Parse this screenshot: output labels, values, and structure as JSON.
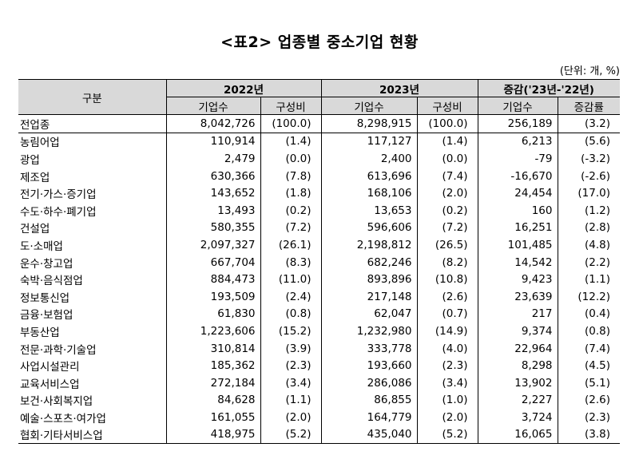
{
  "title": "<표2> 업종별 중소기업 현황",
  "unit": "(단위: 개, %)",
  "header": {
    "category": "구분",
    "groups": [
      "2022년",
      "2023년",
      "증감('23년-'22년)"
    ],
    "subs": [
      "기업수",
      "구성비",
      "기업수",
      "구성비",
      "기업수",
      "증감률"
    ]
  },
  "rows": [
    [
      "전업종",
      "8,042,726",
      "(100.0)",
      "8,298,915",
      "(100.0)",
      "256,189",
      "(3.2)"
    ],
    [
      "농림어업",
      "110,914",
      "(1.4)",
      "117,127",
      "(1.4)",
      "6,213",
      "(5.6)"
    ],
    [
      "광업",
      "2,479",
      "(0.0)",
      "2,400",
      "(0.0)",
      "-79",
      "(-3.2)"
    ],
    [
      "제조업",
      "630,366",
      "(7.8)",
      "613,696",
      "(7.4)",
      "-16,670",
      "(-2.6)"
    ],
    [
      "전기·가스·증기업",
      "143,652",
      "(1.8)",
      "168,106",
      "(2.0)",
      "24,454",
      "(17.0)"
    ],
    [
      "수도·하수·폐기업",
      "13,493",
      "(0.2)",
      "13,653",
      "(0.2)",
      "160",
      "(1.2)"
    ],
    [
      "건설업",
      "580,355",
      "(7.2)",
      "596,606",
      "(7.2)",
      "16,251",
      "(2.8)"
    ],
    [
      "도·소매업",
      "2,097,327",
      "(26.1)",
      "2,198,812",
      "(26.5)",
      "101,485",
      "(4.8)"
    ],
    [
      "운수·창고업",
      "667,704",
      "(8.3)",
      "682,246",
      "(8.2)",
      "14,542",
      "(2.2)"
    ],
    [
      "숙박·음식점업",
      "884,473",
      "(11.0)",
      "893,896",
      "(10.8)",
      "9,423",
      "(1.1)"
    ],
    [
      "정보통신업",
      "193,509",
      "(2.4)",
      "217,148",
      "(2.6)",
      "23,639",
      "(12.2)"
    ],
    [
      "금융·보험업",
      "61,830",
      "(0.8)",
      "62,047",
      "(0.7)",
      "217",
      "(0.4)"
    ],
    [
      "부동산업",
      "1,223,606",
      "(15.2)",
      "1,232,980",
      "(14.9)",
      "9,374",
      "(0.8)"
    ],
    [
      "전문·과학·기술업",
      "310,814",
      "(3.9)",
      "333,778",
      "(4.0)",
      "22,964",
      "(7.4)"
    ],
    [
      "사업시설관리",
      "185,362",
      "(2.3)",
      "193,660",
      "(2.3)",
      "8,298",
      "(4.5)"
    ],
    [
      "교육서비스업",
      "272,184",
      "(3.4)",
      "286,086",
      "(3.4)",
      "13,902",
      "(5.1)"
    ],
    [
      "보건·사회복지업",
      "84,628",
      "(1.1)",
      "86,855",
      "(1.0)",
      "2,227",
      "(2.6)"
    ],
    [
      "예술·스포츠·여가업",
      "161,055",
      "(2.0)",
      "164,779",
      "(2.0)",
      "3,724",
      "(2.3)"
    ],
    [
      "협회·기타서비스업",
      "418,975",
      "(5.2)",
      "435,040",
      "(5.2)",
      "16,065",
      "(3.8)"
    ]
  ]
}
